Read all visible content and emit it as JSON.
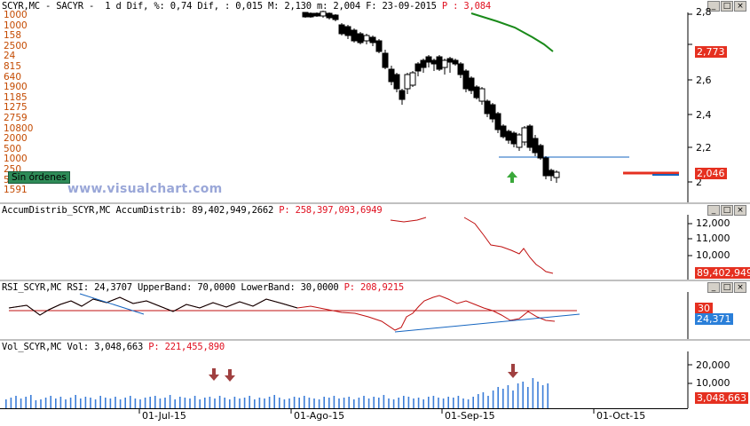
{
  "price_pane": {
    "title": "SCYR,MC - SACYR -  1 d Dif, %: 0,74 Dif, : 0,015 M: 2,130 m: 2,004 F: 23-09-2015 ",
    "title_p": "P : 3,084",
    "y_labels": [
      "2,6",
      "2,4",
      "2,2",
      "2"
    ],
    "y_top_partial": "2,8",
    "last_price_tag": "2,773",
    "close_tag": "2,046",
    "depth_numbers": [
      "1000",
      "1000",
      "158",
      "2500",
      "24",
      "815",
      "640",
      "1900",
      "1185",
      "1275",
      "2759",
      "10800",
      "2000",
      "500",
      "1000",
      "250",
      "500",
      "1591"
    ],
    "orders_label": "Sin órdenes",
    "watermark": "www.visualchart.com"
  },
  "accum_pane": {
    "title": "AccumDistrib_SCYR,MC AccumDistrib: 89,402,949,2662 ",
    "title_p": "P: 258,397,093,6949",
    "y_labels": [
      "12,000",
      "11,000",
      "10,000"
    ],
    "value_tag": "89,402,949"
  },
  "rsi_pane": {
    "title": "RSI_SCYR,MC RSI: 24,3707 UpperBand: 70,0000 LowerBand: 30,0000 ",
    "title_p": "P: 208,9215",
    "band_tag": "30",
    "value_tag": "24,371"
  },
  "vol_pane": {
    "title": "Vol_SCYR,MC Vol: 3,048,663 ",
    "title_p": "P: 221,455,890",
    "y_labels": [
      "20,000",
      "10,000"
    ],
    "value_tag": "3,048,663"
  },
  "date_axis": [
    "01-Jul-15",
    "01-Ago-15",
    "01-Sep-15",
    "01-Oct-15"
  ],
  "window_buttons": [
    "_",
    "□",
    "×"
  ],
  "colors": {
    "ma_line": "#1a8a1a",
    "trend_line": "#1565c0",
    "rsi_line": "#c01010",
    "vol_bar": "#3b7dd8",
    "arrow_down": "#a04040",
    "arrow_up": "#3aa83a"
  }
}
